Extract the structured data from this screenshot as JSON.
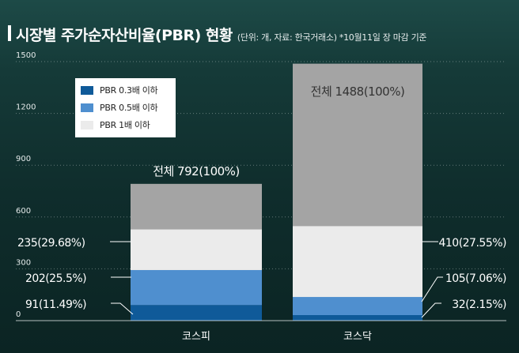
{
  "header": {
    "title": "시장별 주가순자산비율(PBR) 현황",
    "subtitle": "(단위: 개, 자료: 한국거래소) *10월11일 장 마감 기준"
  },
  "chart_data": {
    "type": "bar",
    "stacked": true,
    "title": "시장별 주가순자산비율(PBR) 현황",
    "xlabel": "",
    "ylabel": "",
    "ylim": [
      0,
      1500
    ],
    "yticks": [
      0,
      300,
      600,
      900,
      1200,
      1500
    ],
    "grid": true,
    "legend_position": "top-left",
    "categories": [
      "코스피",
      "코스닥"
    ],
    "series": [
      {
        "name": "PBR 0.3배 이하",
        "color": "#0f5a99",
        "values": [
          91,
          32
        ],
        "labels": [
          "91(11.49%)",
          "32(2.15%)"
        ]
      },
      {
        "name": "PBR 0.5배 이하",
        "color": "#4f8fcf",
        "values": [
          202,
          105
        ],
        "labels": [
          "202(25.5%)",
          "105(7.06%)"
        ]
      },
      {
        "name": "PBR 1배 이하",
        "color": "#ebebeb",
        "values": [
          235,
          410
        ],
        "labels": [
          "235(29.68%)",
          "410(27.55%)"
        ]
      }
    ],
    "totals": {
      "color": "#a4a4a4",
      "values": [
        792,
        1488
      ],
      "labels": [
        "전체 792(100%)",
        "전체 1488(100%)"
      ]
    }
  }
}
